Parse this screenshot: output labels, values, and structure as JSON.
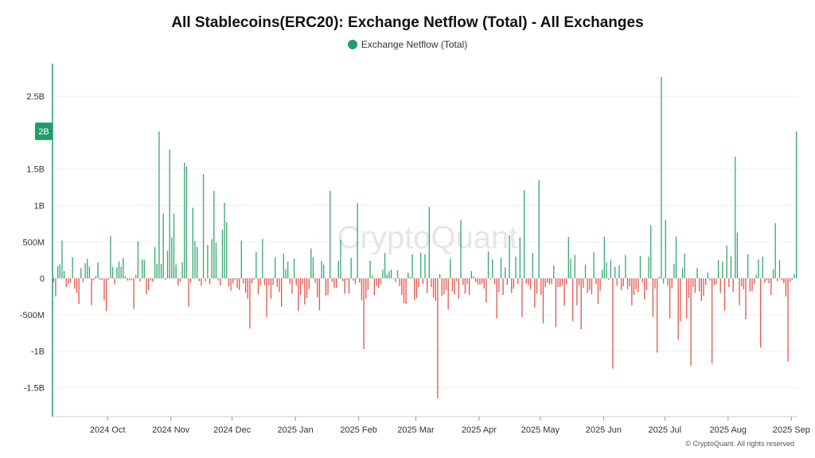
{
  "chart_data": {
    "type": "bar",
    "title": "All Stablecoins(ERC20): Exchange Netflow (Total) - All Exchanges",
    "series": [
      {
        "name": "Exchange Netflow (Total)"
      }
    ],
    "y_ticks": [
      {
        "value": 2500000000,
        "label": "2.5B"
      },
      {
        "value": 1500000000,
        "label": "1.5B"
      },
      {
        "value": 1000000000,
        "label": "1B"
      },
      {
        "value": 500000000,
        "label": "500M"
      },
      {
        "value": 0,
        "label": "0"
      },
      {
        "value": -500000000,
        "label": "-500M"
      },
      {
        "value": -1000000000,
        "label": "-1B"
      },
      {
        "value": -1500000000,
        "label": "-1.5B"
      }
    ],
    "x_ticks": [
      {
        "date": "2024-10-01",
        "label": "2024 Oct"
      },
      {
        "date": "2024-11-01",
        "label": "2024 Nov"
      },
      {
        "date": "2024-12-01",
        "label": "2024 Dec"
      },
      {
        "date": "2025-01-01",
        "label": "2025 Jan"
      },
      {
        "date": "2025-02-01",
        "label": "2025 Feb"
      },
      {
        "date": "2025-03-01",
        "label": "2025 Mar"
      },
      {
        "date": "2025-04-01",
        "label": "2025 Apr"
      },
      {
        "date": "2025-05-01",
        "label": "2025 May"
      },
      {
        "date": "2025-06-01",
        "label": "2025 Jun"
      },
      {
        "date": "2025-07-01",
        "label": "2025 Jul"
      },
      {
        "date": "2025-08-01",
        "label": "2025 Aug"
      },
      {
        "date": "2025-09-01",
        "label": "2025 Sep"
      }
    ],
    "x_range": [
      "2024-09-04",
      "2025-09-04"
    ],
    "y_range": [
      -1900000000,
      2950000000
    ],
    "last_value_label": "2B",
    "grid": true,
    "legend_position": "top-center",
    "colors": {
      "positive": "#3aa873",
      "negative": "#e4574f",
      "legend": "#1f9d6b",
      "badge": "#1f9d6b"
    },
    "watermark": "CryptoQuant",
    "copyright": "© CryptoQuant. All rights reserved",
    "daily_values_millions": [
      -50,
      -250,
      170,
      190,
      520,
      100,
      -120,
      -80,
      -60,
      290,
      -140,
      -200,
      -350,
      140,
      -50,
      210,
      270,
      160,
      -370,
      -30,
      30,
      220,
      -20,
      -20,
      -300,
      -450,
      -20,
      580,
      160,
      -80,
      150,
      230,
      160,
      280,
      30,
      -30,
      -30,
      -20,
      -420,
      50,
      510,
      -40,
      260,
      250,
      -220,
      -160,
      -30,
      -50,
      430,
      200,
      2020,
      200,
      890,
      -20,
      380,
      1770,
      560,
      890,
      190,
      -100,
      -50,
      220,
      1590,
      1540,
      -390,
      -60,
      970,
      510,
      430,
      -40,
      -100,
      1430,
      -40,
      460,
      -80,
      540,
      1200,
      490,
      -30,
      -100,
      670,
      1040,
      770,
      -110,
      -170,
      -70,
      -20,
      -130,
      -160,
      520,
      -70,
      -200,
      -280,
      -690,
      -70,
      -20,
      360,
      -220,
      -100,
      540,
      -90,
      -530,
      -100,
      -280,
      -90,
      290,
      -120,
      -190,
      -390,
      340,
      120,
      230,
      -80,
      -210,
      270,
      -100,
      -450,
      -230,
      -80,
      -360,
      -270,
      -150,
      410,
      290,
      -60,
      -260,
      -440,
      240,
      190,
      -240,
      -230,
      1200,
      -50,
      -130,
      -130,
      240,
      530,
      -40,
      -210,
      -20,
      -210,
      280,
      -30,
      -80,
      1030,
      -60,
      -300,
      -970,
      -280,
      -160,
      240,
      40,
      -230,
      -100,
      -130,
      -80,
      120,
      350,
      60,
      100,
      120,
      -10,
      -50,
      110,
      -110,
      -230,
      -340,
      -350,
      80,
      20,
      330,
      -300,
      -270,
      -120,
      350,
      -80,
      330,
      -200,
      980,
      -120,
      -260,
      -310,
      -1650,
      60,
      -240,
      -220,
      -160,
      -430,
      270,
      -180,
      -220,
      -40,
      -280,
      800,
      -90,
      -210,
      -80,
      -230,
      100,
      30,
      -50,
      -80,
      -90,
      -70,
      -140,
      -330,
      370,
      -20,
      260,
      -80,
      -550,
      -190,
      280,
      -230,
      150,
      -90,
      590,
      -200,
      -140,
      300,
      -80,
      560,
      -530,
      1210,
      -70,
      -90,
      -150,
      350,
      -400,
      -210,
      1350,
      -230,
      -620,
      -120,
      -60,
      -80,
      -80,
      180,
      -670,
      -120,
      -120,
      -100,
      -380,
      -80,
      570,
      270,
      -590,
      320,
      -370,
      -100,
      -700,
      -130,
      190,
      -200,
      -160,
      -220,
      360,
      -80,
      -350,
      -170,
      120,
      570,
      220,
      -20,
      250,
      -1240,
      160,
      -100,
      180,
      -160,
      -110,
      320,
      -150,
      -110,
      -370,
      -230,
      -150,
      -190,
      310,
      -60,
      -290,
      -160,
      300,
      730,
      -530,
      -140,
      -1020,
      20,
      2770,
      -70,
      800,
      -100,
      -550,
      -140,
      200,
      570,
      -840,
      -590,
      140,
      340,
      -550,
      -270,
      -1200,
      -120,
      -200,
      140,
      -180,
      -310,
      -240,
      -90,
      80,
      -30,
      -1170,
      -100,
      -80,
      250,
      -200,
      230,
      -440,
      450,
      -120,
      300,
      -190,
      1670,
      630,
      -370,
      -110,
      -150,
      -560,
      330,
      -180,
      -180,
      -80,
      50,
      260,
      -950,
      300,
      -60,
      -30,
      -70,
      -230,
      120,
      760,
      -40,
      250,
      -30,
      -70,
      -250,
      -1140,
      -50,
      -20,
      60,
      2020
    ]
  }
}
